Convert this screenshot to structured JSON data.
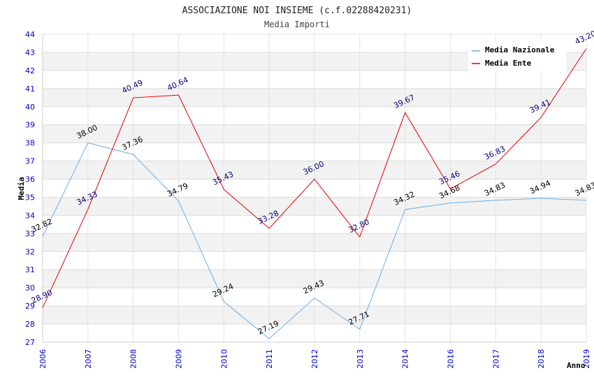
{
  "chart_data": {
    "type": "line",
    "title": "ASSOCIAZIONE NOI INSIEME (c.f.02288420231)",
    "subtitle": "Media Importi",
    "xlabel": "Anno",
    "ylabel": "Media",
    "categories": [
      "2006",
      "2007",
      "2008",
      "2009",
      "2010",
      "2011",
      "2012",
      "2013",
      "2014",
      "2016",
      "2017",
      "2018",
      "2019"
    ],
    "ylim": [
      27,
      44
    ],
    "yticks": [
      "27",
      "28",
      "29",
      "30",
      "31",
      "32",
      "33",
      "34",
      "35",
      "36",
      "37",
      "38",
      "39",
      "40",
      "41",
      "42",
      "43",
      "44"
    ],
    "grid": true,
    "legend_position": "top-right",
    "series": [
      {
        "name": "Media Nazionale",
        "color": "#6aaee8",
        "label_color": "#000000",
        "values": [
          32.82,
          38.0,
          37.36,
          34.79,
          29.24,
          27.19,
          29.43,
          27.71,
          34.32,
          34.68,
          34.83,
          34.94,
          34.83
        ],
        "labels": [
          "32.82",
          "38.00",
          "37.36",
          "34.79",
          "29.24",
          "27.19",
          "29.43",
          "27.71",
          "34.32",
          "34.68",
          "34.83",
          "34.94",
          "34.83"
        ]
      },
      {
        "name": "Media Ente",
        "color": "#e00000",
        "label_color": "#000080",
        "values": [
          28.9,
          34.33,
          40.49,
          40.64,
          35.43,
          33.28,
          36.0,
          32.8,
          39.67,
          35.46,
          36.83,
          39.41,
          43.2
        ],
        "labels": [
          "28.90",
          "34.33",
          "40.49",
          "40.64",
          "35.43",
          "33.28",
          "36.00",
          "32.80",
          "39.67",
          "35.46",
          "36.83",
          "39.41",
          "43.20"
        ]
      }
    ]
  }
}
